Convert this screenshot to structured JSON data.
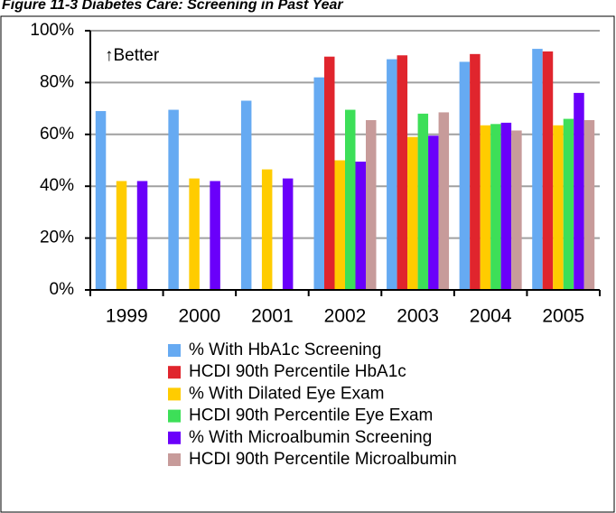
{
  "chart_data": {
    "type": "bar",
    "title": "Figure 11-3 Diabetes Care: Screening in Past Year",
    "annotation": "↑Better",
    "categories": [
      "1999",
      "2000",
      "2001",
      "2002",
      "2003",
      "2004",
      "2005"
    ],
    "series": [
      {
        "name": "% With HbA1c Screening",
        "color": "#66aaf2",
        "values": [
          69,
          69.5,
          73,
          82,
          89,
          88,
          93
        ]
      },
      {
        "name": "HCDI 90th Percentile HbA1c",
        "color": "#e0252d",
        "values": [
          null,
          null,
          null,
          90,
          90.5,
          91,
          92
        ]
      },
      {
        "name": "% With Dilated Eye Exam",
        "color": "#ffcc00",
        "values": [
          42,
          43,
          46.5,
          50,
          59,
          63.5,
          63.5
        ]
      },
      {
        "name": "HCDI 90th Percentile Eye Exam",
        "color": "#3ddf58",
        "values": [
          null,
          null,
          null,
          69.5,
          68,
          64,
          66
        ]
      },
      {
        "name": "% With Microalbumin Screening",
        "color": "#6a00fa",
        "values": [
          42,
          42,
          43,
          49.5,
          59.5,
          64.5,
          76
        ]
      },
      {
        "name": "HCDI 90th Percentile Microalbumin",
        "color": "#c79b9a",
        "values": [
          null,
          null,
          null,
          65.5,
          68.5,
          61.5,
          65.5
        ]
      }
    ],
    "ylim": [
      0,
      100
    ],
    "yticks": [
      {
        "value": 0,
        "label": "0%"
      },
      {
        "value": 20,
        "label": "20%"
      },
      {
        "value": 40,
        "label": "40%"
      },
      {
        "value": 60,
        "label": "60%"
      },
      {
        "value": 80,
        "label": "80%"
      },
      {
        "value": 100,
        "label": "100%"
      }
    ],
    "grid": true
  }
}
